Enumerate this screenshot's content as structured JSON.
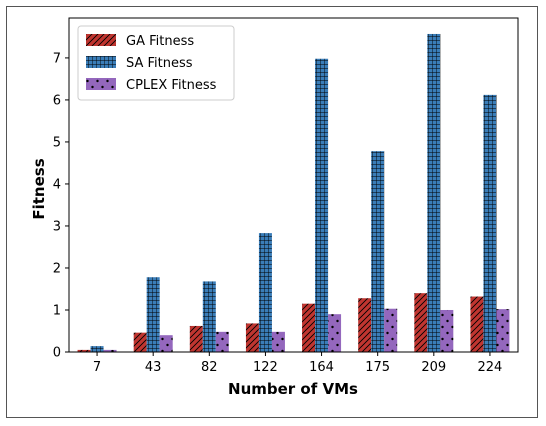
{
  "chart_data": {
    "type": "bar",
    "categories": [
      "7",
      "43",
      "82",
      "122",
      "164",
      "175",
      "209",
      "224"
    ],
    "series": [
      {
        "name": "GA Fitness",
        "values": [
          0.05,
          0.46,
          0.62,
          0.68,
          1.15,
          1.28,
          1.4,
          1.32
        ],
        "color": "#c03530",
        "pattern": "diagonal-hatch"
      },
      {
        "name": "SA Fitness",
        "values": [
          0.14,
          1.78,
          1.68,
          2.83,
          6.98,
          4.78,
          7.57,
          6.12
        ],
        "color": "#3a7db8",
        "pattern": "grid-hatch"
      },
      {
        "name": "CPLEX Fitness",
        "values": [
          0.05,
          0.4,
          0.48,
          0.48,
          0.9,
          1.03,
          1.0,
          1.02
        ],
        "color": "#9467bd",
        "pattern": "dots"
      }
    ],
    "xlabel": "Number of VMs",
    "ylabel": "Fitness",
    "ylim": [
      0,
      7.95
    ],
    "yticks": [
      0,
      1,
      2,
      3,
      4,
      5,
      6,
      7
    ],
    "legend": "top-left",
    "grid": false
  }
}
